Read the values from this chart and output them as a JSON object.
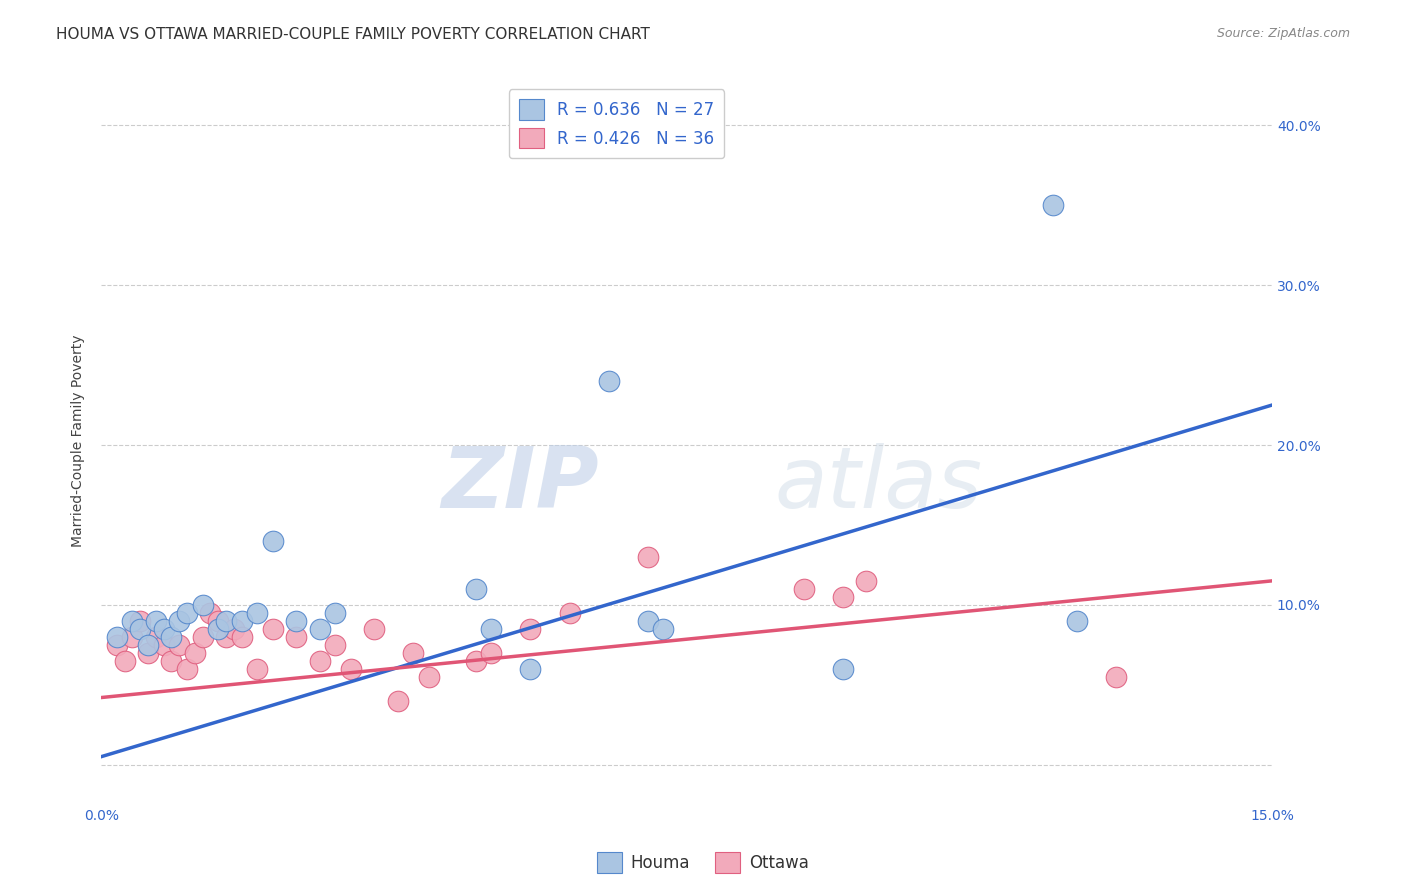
{
  "title": "HOUMA VS OTTAWA MARRIED-COUPLE FAMILY POVERTY CORRELATION CHART",
  "source": "Source: ZipAtlas.com",
  "ylabel": "Married-Couple Family Poverty",
  "x_min": 0.0,
  "x_max": 0.15,
  "y_min": -0.025,
  "y_max": 0.43,
  "x_ticks": [
    0.0,
    0.05,
    0.1,
    0.15
  ],
  "x_tick_labels": [
    "0.0%",
    "",
    "",
    "15.0%"
  ],
  "y_ticks": [
    0.0,
    0.1,
    0.2,
    0.3,
    0.4
  ],
  "y_tick_labels_right": [
    "",
    "10.0%",
    "20.0%",
    "30.0%",
    "40.0%"
  ],
  "houma_color": "#aac5e2",
  "ottawa_color": "#f2aabb",
  "houma_edge_color": "#5588cc",
  "ottawa_edge_color": "#e06080",
  "houma_line_color": "#3366cc",
  "ottawa_line_color": "#e05575",
  "houma_R": 0.636,
  "houma_N": 27,
  "ottawa_R": 0.426,
  "ottawa_N": 36,
  "watermark_zip": "ZIP",
  "watermark_atlas": "atlas",
  "grid_color": "#cccccc",
  "background_color": "#ffffff",
  "title_fontsize": 11,
  "axis_label_fontsize": 10,
  "tick_fontsize": 10,
  "legend_fontsize": 12,
  "houma_line_x0": 0.0,
  "houma_line_y0": 0.005,
  "houma_line_x1": 0.15,
  "houma_line_y1": 0.225,
  "ottawa_line_x0": 0.0,
  "ottawa_line_y0": 0.042,
  "ottawa_line_x1": 0.15,
  "ottawa_line_y1": 0.115,
  "houma_scatter_x": [
    0.002,
    0.004,
    0.005,
    0.006,
    0.007,
    0.008,
    0.009,
    0.01,
    0.011,
    0.013,
    0.015,
    0.016,
    0.018,
    0.02,
    0.022,
    0.025,
    0.028,
    0.03,
    0.048,
    0.05,
    0.055,
    0.065,
    0.07,
    0.072,
    0.095,
    0.122,
    0.125
  ],
  "houma_scatter_y": [
    0.08,
    0.09,
    0.085,
    0.075,
    0.09,
    0.085,
    0.08,
    0.09,
    0.095,
    0.1,
    0.085,
    0.09,
    0.09,
    0.095,
    0.14,
    0.09,
    0.085,
    0.095,
    0.11,
    0.085,
    0.06,
    0.24,
    0.09,
    0.085,
    0.06,
    0.35,
    0.09
  ],
  "ottawa_scatter_x": [
    0.002,
    0.003,
    0.004,
    0.005,
    0.006,
    0.007,
    0.008,
    0.009,
    0.01,
    0.011,
    0.012,
    0.013,
    0.014,
    0.015,
    0.016,
    0.017,
    0.018,
    0.02,
    0.022,
    0.025,
    0.028,
    0.03,
    0.032,
    0.035,
    0.038,
    0.04,
    0.042,
    0.048,
    0.05,
    0.055,
    0.06,
    0.07,
    0.09,
    0.095,
    0.098,
    0.13
  ],
  "ottawa_scatter_y": [
    0.075,
    0.065,
    0.08,
    0.09,
    0.07,
    0.08,
    0.075,
    0.065,
    0.075,
    0.06,
    0.07,
    0.08,
    0.095,
    0.09,
    0.08,
    0.085,
    0.08,
    0.06,
    0.085,
    0.08,
    0.065,
    0.075,
    0.06,
    0.085,
    0.04,
    0.07,
    0.055,
    0.065,
    0.07,
    0.085,
    0.095,
    0.13,
    0.11,
    0.105,
    0.115,
    0.055
  ]
}
